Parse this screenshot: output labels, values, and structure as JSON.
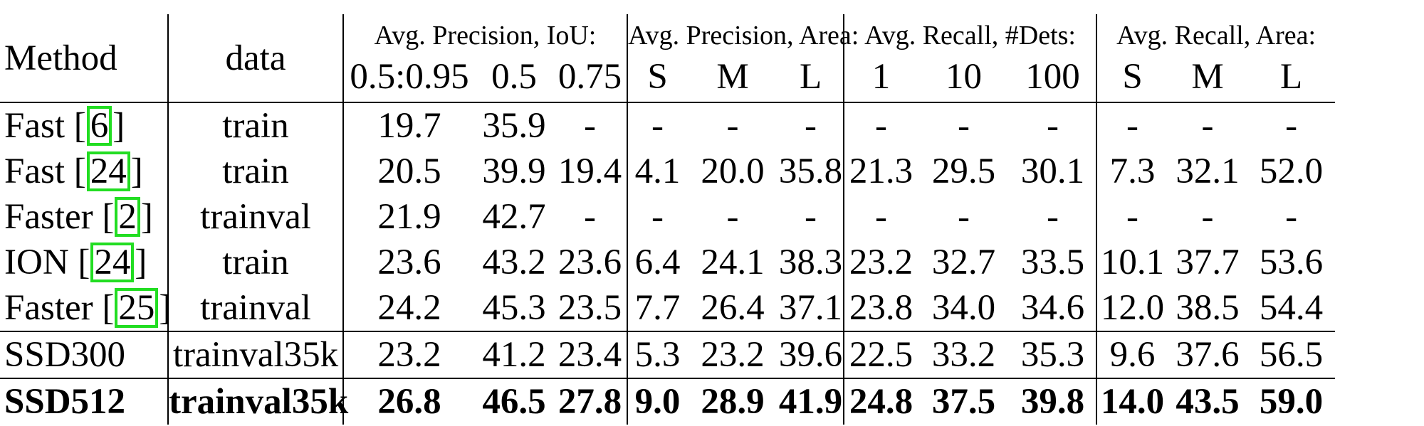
{
  "table": {
    "headers": {
      "method": "Method",
      "data": "data",
      "groups": [
        "Avg. Precision, IoU:",
        "Avg. Precision, Area:",
        "Avg. Recall, #Dets:",
        "Avg. Recall, Area:"
      ],
      "subcolumns": [
        "0.5:0.95",
        "0.5",
        "0.75",
        "S",
        "M",
        "L",
        "1",
        "10",
        "100",
        "S",
        "M",
        "L"
      ]
    },
    "rows": [
      {
        "method": "Fast",
        "cite": "6",
        "data": "train",
        "values": [
          "19.7",
          "35.9",
          "-",
          "-",
          "-",
          "-",
          "-",
          "-",
          "-",
          "-",
          "-",
          "-"
        ]
      },
      {
        "method": "Fast",
        "cite": "24",
        "data": "train",
        "values": [
          "20.5",
          "39.9",
          "19.4",
          "4.1",
          "20.0",
          "35.8",
          "21.3",
          "29.5",
          "30.1",
          "7.3",
          "32.1",
          "52.0"
        ]
      },
      {
        "method": "Faster",
        "cite": "2",
        "data": "trainval",
        "values": [
          "21.9",
          "42.7",
          "-",
          "-",
          "-",
          "-",
          "-",
          "-",
          "-",
          "-",
          "-",
          "-"
        ]
      },
      {
        "method": "ION",
        "cite": "24",
        "data": "train",
        "values": [
          "23.6",
          "43.2",
          "23.6",
          "6.4",
          "24.1",
          "38.3",
          "23.2",
          "32.7",
          "33.5",
          "10.1",
          "37.7",
          "53.6"
        ]
      },
      {
        "method": "Faster",
        "cite": "25",
        "data": "trainval",
        "values": [
          "24.2",
          "45.3",
          "23.5",
          "7.7",
          "26.4",
          "37.1",
          "23.8",
          "34.0",
          "34.6",
          "12.0",
          "38.5",
          "54.4"
        ]
      },
      {
        "method": "SSD300",
        "cite": "",
        "data": "trainval35k",
        "values": [
          "23.2",
          "41.2",
          "23.4",
          "5.3",
          "23.2",
          "39.6",
          "22.5",
          "33.2",
          "35.3",
          "9.6",
          "37.6",
          "56.5"
        ]
      },
      {
        "method": "SSD512",
        "cite": "",
        "data": "trainval35k",
        "bold": true,
        "values": [
          "26.8",
          "46.5",
          "27.8",
          "9.0",
          "28.9",
          "41.9",
          "24.8",
          "37.5",
          "39.8",
          "14.0",
          "43.5",
          "59.0"
        ]
      }
    ]
  },
  "colors": {
    "citation_box": "#22dd22",
    "text": "#000000",
    "background": "#ffffff"
  }
}
